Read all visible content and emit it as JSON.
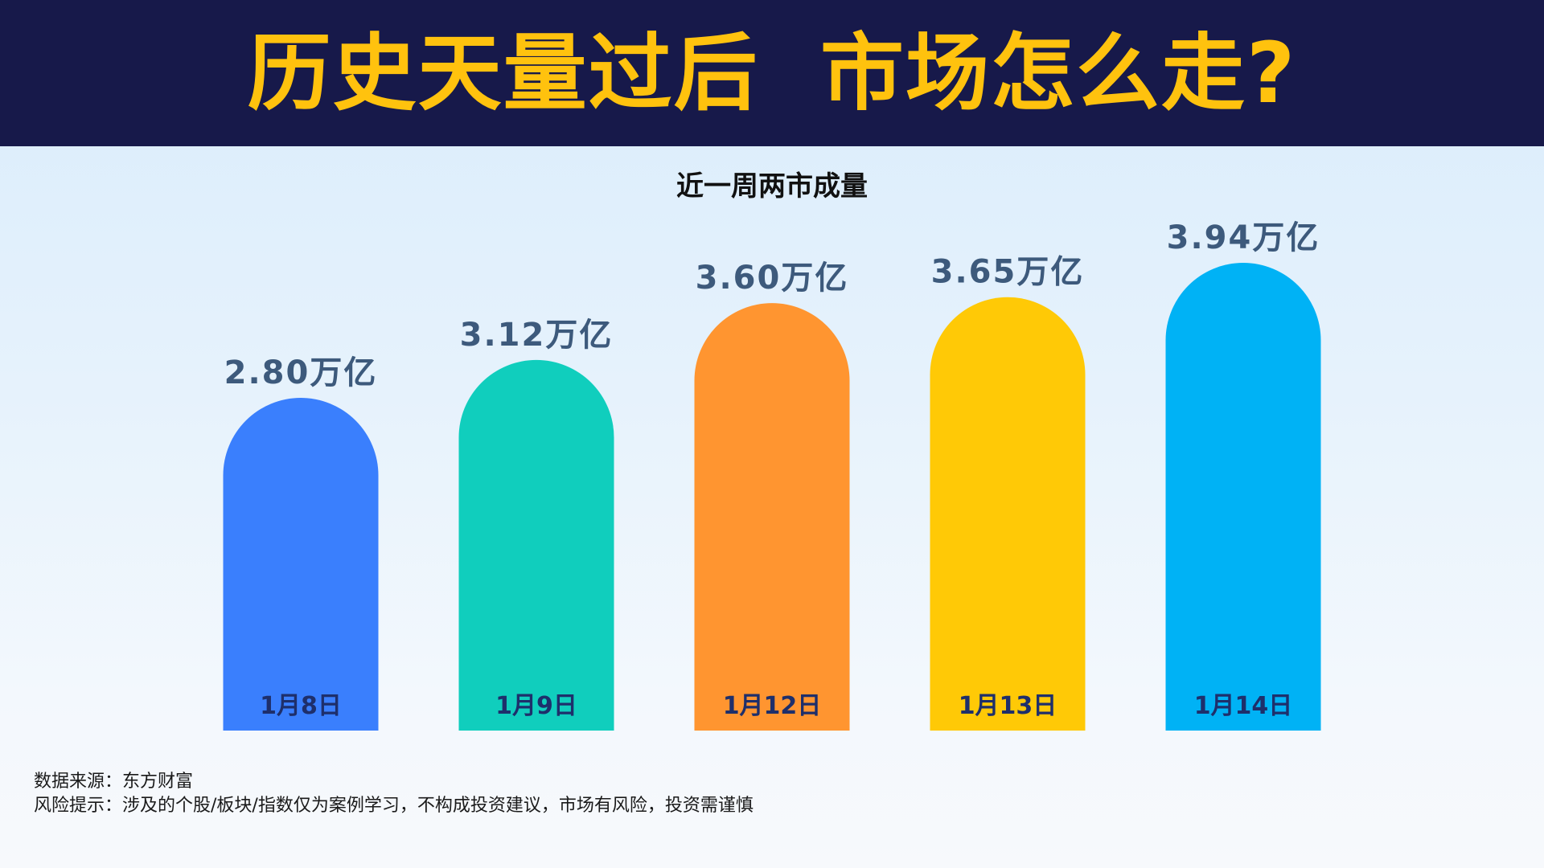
{
  "header": {
    "title": "历史天量过后  市场怎么走?"
  },
  "chart_data": {
    "type": "bar",
    "title": "近一周两市成量",
    "categories": [
      "1月8日",
      "1月9日",
      "1月12日",
      "1月13日",
      "1月14日"
    ],
    "values": [
      2.8,
      3.12,
      3.6,
      3.65,
      3.94
    ],
    "value_labels": [
      "2.80万亿",
      "3.12万亿",
      "3.60万亿",
      "3.65万亿",
      "3.94万亿"
    ],
    "unit": "万亿",
    "colors": [
      "#3a7ffd",
      "#10cebd",
      "#ff9530",
      "#ffc906",
      "#00b2f5"
    ],
    "label_color": "#3d5a7c",
    "category_label_color": "#1e2f6b",
    "grid": false,
    "legend": "none"
  },
  "footer": {
    "source": "数据来源：东方财富",
    "risk": "风险提示：涉及的个股/板块/指数仅为案例学习，不构成投资建议，市场有风险，投资需谨慎"
  }
}
